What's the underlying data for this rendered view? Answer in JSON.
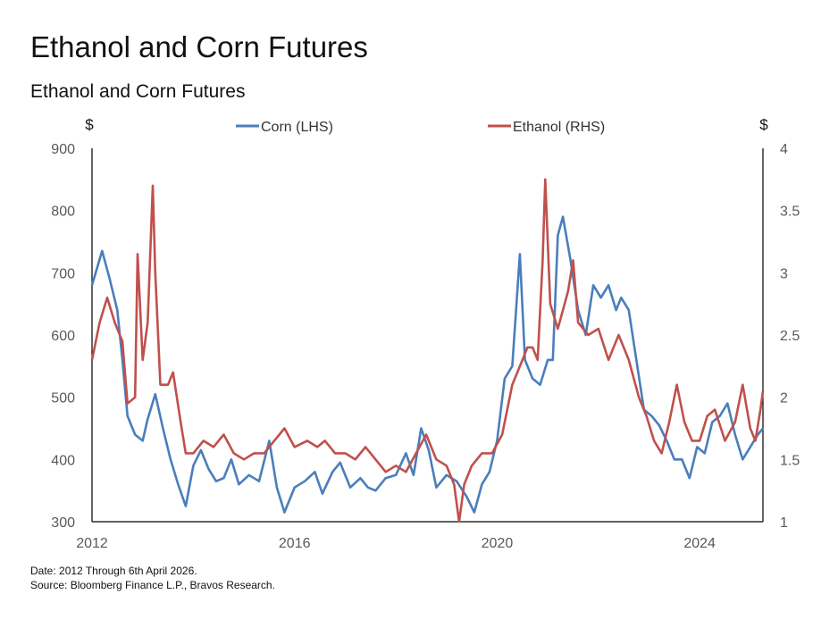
{
  "title": "Ethanol and Corn Futures",
  "subtitle": "Ethanol and Corn Futures",
  "notes": {
    "date": "Date: 2012 Through 6th April 2026.",
    "source": "Source: Bloomberg Finance L.P., Bravos Research."
  },
  "colors": {
    "corn": "#4a7ebb",
    "ethanol": "#c0504d",
    "axis": "#000000",
    "tick_text": "#595959"
  },
  "chart_data": {
    "type": "line",
    "y_left": {
      "unit_label": "$",
      "min": 300,
      "max": 900,
      "ticks": [
        300,
        400,
        500,
        600,
        700,
        800,
        900
      ]
    },
    "y_right": {
      "unit_label": "$",
      "min": 1,
      "max": 4,
      "ticks": [
        1,
        1.5,
        2,
        2.5,
        3,
        3.5,
        4
      ],
      "tick_labels": [
        "1",
        "1.5",
        "2",
        "2.5",
        "3",
        "3.5",
        "4"
      ]
    },
    "x": {
      "min": 2012.0,
      "max": 2025.25,
      "ticks": [
        2012,
        2016,
        2020,
        2024
      ],
      "tick_labels": [
        "2012",
        "2016",
        "2020",
        "2024"
      ]
    },
    "legend_position": "top-center",
    "grid": false,
    "series": [
      {
        "name": "Corn (LHS)",
        "axis": "left",
        "x": [
          2012.0,
          2012.2,
          2012.35,
          2012.5,
          2012.6,
          2012.7,
          2012.85,
          2013.0,
          2013.1,
          2013.25,
          2013.4,
          2013.55,
          2013.7,
          2013.85,
          2014.0,
          2014.15,
          2014.3,
          2014.45,
          2014.6,
          2014.75,
          2014.9,
          2015.1,
          2015.3,
          2015.5,
          2015.65,
          2015.8,
          2016.0,
          2016.2,
          2016.4,
          2016.55,
          2016.75,
          2016.9,
          2017.1,
          2017.3,
          2017.45,
          2017.6,
          2017.8,
          2018.0,
          2018.2,
          2018.35,
          2018.5,
          2018.65,
          2018.8,
          2019.0,
          2019.2,
          2019.4,
          2019.55,
          2019.7,
          2019.85,
          2020.0,
          2020.15,
          2020.3,
          2020.45,
          2020.55,
          2020.7,
          2020.85,
          2021.0,
          2021.1,
          2021.2,
          2021.3,
          2021.45,
          2021.6,
          2021.75,
          2021.9,
          2022.05,
          2022.2,
          2022.35,
          2022.45,
          2022.6,
          2022.75,
          2022.9,
          2023.05,
          2023.2,
          2023.35,
          2023.5,
          2023.65,
          2023.8,
          2023.95,
          2024.1,
          2024.25,
          2024.4,
          2024.55,
          2024.7,
          2024.85,
          2025.0,
          2025.15,
          2025.25
        ],
        "values": [
          680,
          735,
          690,
          640,
          560,
          470,
          440,
          430,
          465,
          505,
          450,
          400,
          360,
          325,
          390,
          415,
          385,
          365,
          370,
          400,
          360,
          375,
          365,
          430,
          355,
          315,
          355,
          365,
          380,
          345,
          380,
          395,
          355,
          370,
          355,
          350,
          370,
          375,
          410,
          375,
          450,
          415,
          355,
          375,
          365,
          340,
          315,
          360,
          380,
          430,
          530,
          550,
          730,
          560,
          530,
          520,
          560,
          560,
          760,
          790,
          720,
          640,
          600,
          680,
          660,
          680,
          640,
          660,
          640,
          560,
          480,
          470,
          455,
          430,
          400,
          400,
          370,
          420,
          410,
          460,
          470,
          490,
          440,
          400,
          420,
          440,
          450
        ]
      },
      {
        "name": "Ethanol (RHS)",
        "axis": "right",
        "x": [
          2012.0,
          2012.15,
          2012.3,
          2012.45,
          2012.6,
          2012.7,
          2012.85,
          2012.9,
          2013.0,
          2013.1,
          2013.2,
          2013.25,
          2013.35,
          2013.5,
          2013.6,
          2013.75,
          2013.85,
          2014.0,
          2014.2,
          2014.4,
          2014.6,
          2014.8,
          2015.0,
          2015.2,
          2015.4,
          2015.6,
          2015.8,
          2016.0,
          2016.25,
          2016.45,
          2016.6,
          2016.8,
          2017.0,
          2017.2,
          2017.4,
          2017.6,
          2017.8,
          2018.0,
          2018.2,
          2018.4,
          2018.6,
          2018.8,
          2019.0,
          2019.15,
          2019.25,
          2019.35,
          2019.5,
          2019.7,
          2019.9,
          2020.1,
          2020.3,
          2020.5,
          2020.6,
          2020.7,
          2020.8,
          2020.9,
          2020.95,
          2021.05,
          2021.2,
          2021.4,
          2021.5,
          2021.6,
          2021.8,
          2022.0,
          2022.2,
          2022.4,
          2022.6,
          2022.8,
          2022.95,
          2023.1,
          2023.25,
          2023.4,
          2023.55,
          2023.7,
          2023.85,
          2024.0,
          2024.15,
          2024.3,
          2024.5,
          2024.7,
          2024.85,
          2025.0,
          2025.1,
          2025.2,
          2025.25
        ],
        "values": [
          2.3,
          2.6,
          2.8,
          2.6,
          2.45,
          1.95,
          2.0,
          3.15,
          2.3,
          2.6,
          3.7,
          3.0,
          2.1,
          2.1,
          2.2,
          1.8,
          1.55,
          1.55,
          1.65,
          1.6,
          1.7,
          1.55,
          1.5,
          1.55,
          1.55,
          1.65,
          1.75,
          1.6,
          1.65,
          1.6,
          1.65,
          1.55,
          1.55,
          1.5,
          1.6,
          1.5,
          1.4,
          1.45,
          1.4,
          1.55,
          1.7,
          1.5,
          1.45,
          1.3,
          1.0,
          1.3,
          1.45,
          1.55,
          1.55,
          1.7,
          2.1,
          2.3,
          2.4,
          2.4,
          2.3,
          3.1,
          3.75,
          2.75,
          2.55,
          2.85,
          3.1,
          2.6,
          2.5,
          2.55,
          2.3,
          2.5,
          2.3,
          2.0,
          1.85,
          1.65,
          1.55,
          1.8,
          2.1,
          1.8,
          1.65,
          1.65,
          1.85,
          1.9,
          1.65,
          1.8,
          2.1,
          1.75,
          1.65,
          1.9,
          2.05
        ]
      }
    ]
  }
}
